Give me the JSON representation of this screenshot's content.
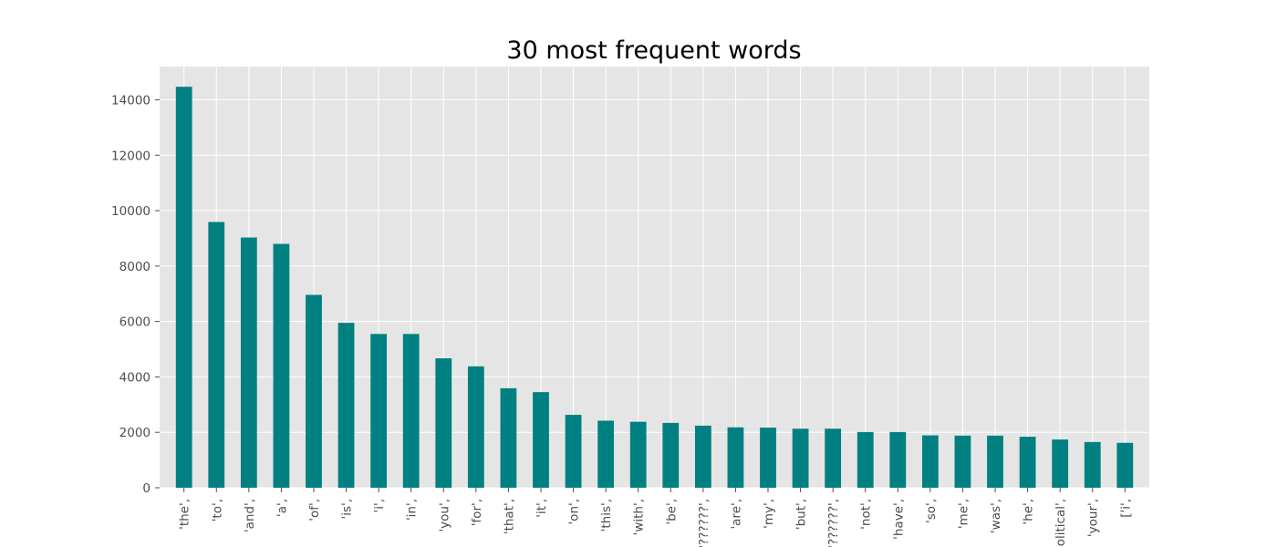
{
  "chart_data": {
    "type": "bar",
    "title": "30 most frequent words",
    "xlabel": "",
    "ylabel": "",
    "ylim": [
      0,
      15200
    ],
    "yticks": [
      0,
      2000,
      4000,
      6000,
      8000,
      10000,
      12000,
      14000
    ],
    "grid": true,
    "categories": [
      "'the',",
      "'to',",
      "'and',",
      "'a',",
      "'of',",
      "'is',",
      "'i',",
      "'in',",
      "'you',",
      "'for',",
      "'that',",
      "'it',",
      "'on',",
      "'this',",
      "'with',",
      "'be',",
      "'????????',",
      "'are',",
      "'my',",
      "'but',",
      "'??????',",
      "'not',",
      "'have',",
      "'so',",
      "'me',",
      "'was',",
      "'he',",
      "'political',",
      "'your',",
      "['i',"
    ],
    "values": [
      14470,
      9590,
      9030,
      8800,
      6960,
      5950,
      5550,
      5550,
      4670,
      4380,
      3590,
      3450,
      2630,
      2420,
      2380,
      2340,
      2240,
      2180,
      2170,
      2130,
      2130,
      2010,
      2010,
      1890,
      1880,
      1880,
      1840,
      1740,
      1650,
      1620
    ],
    "bar_color": "#008080",
    "plot_background": "#e5e5e5",
    "grid_color": "#ffffff"
  }
}
